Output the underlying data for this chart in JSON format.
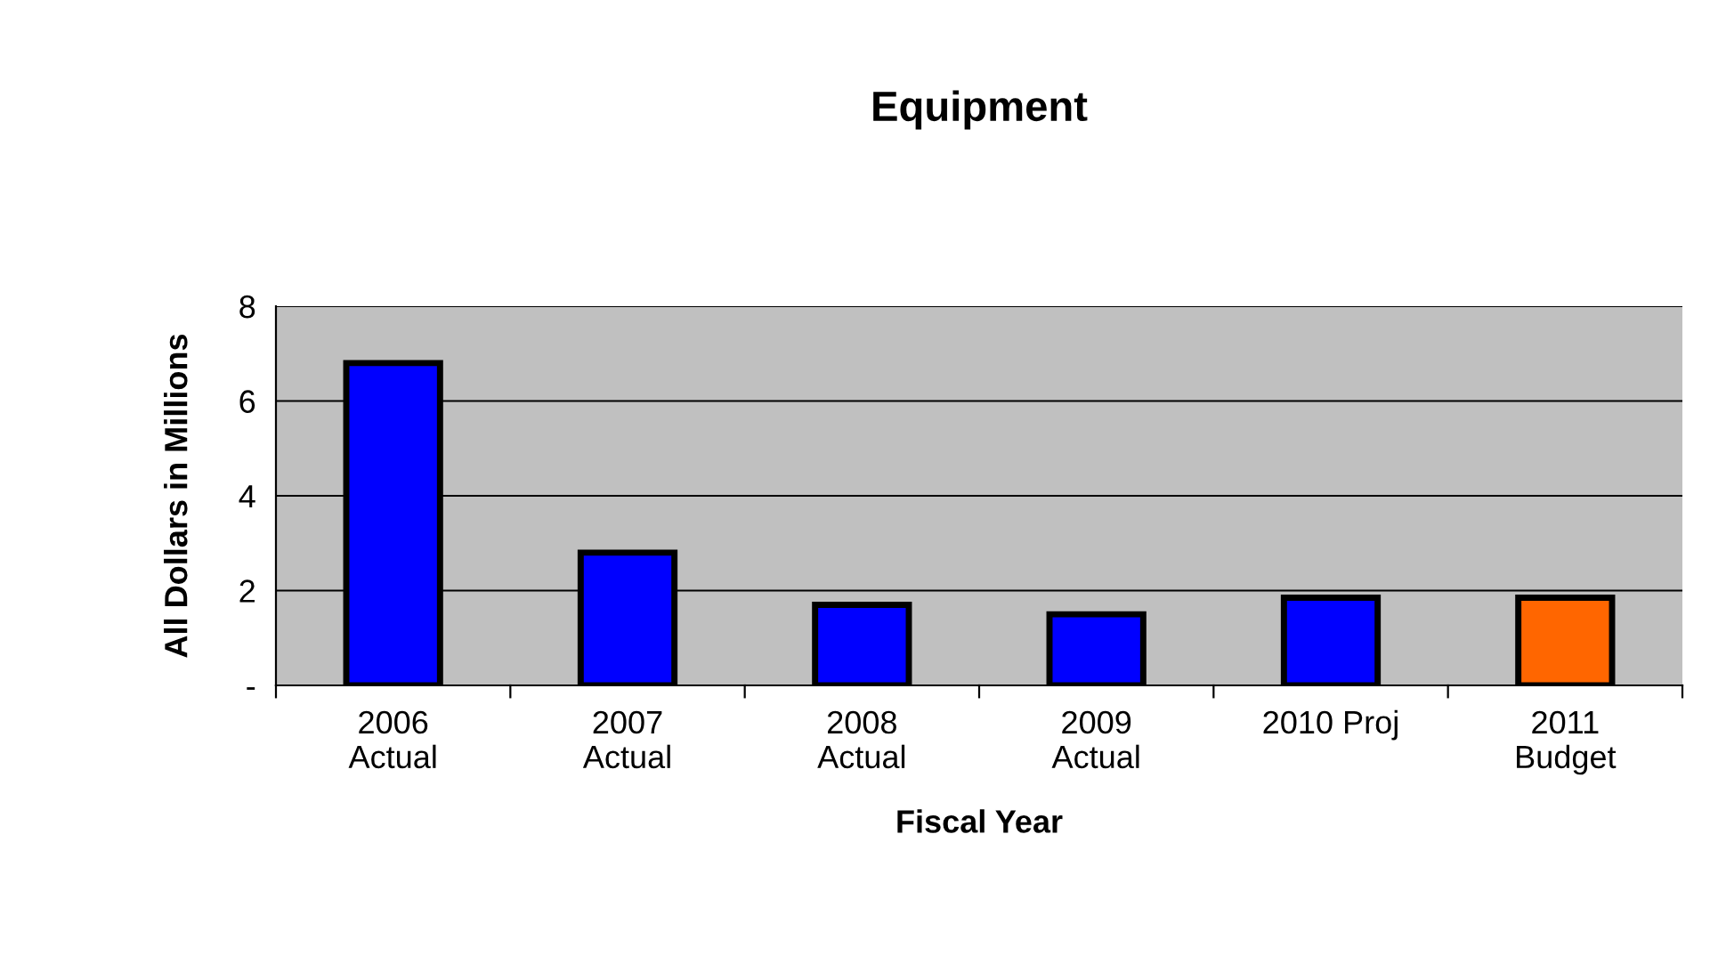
{
  "chart_data": {
    "type": "bar",
    "title": "Equipment",
    "xlabel": "Fiscal Year",
    "ylabel": "All Dollars in Millions",
    "categories": [
      "2006\nActual",
      "2007\nActual",
      "2008\nActual",
      "2009\nActual",
      "2010 Proj",
      "2011\nBudget"
    ],
    "values": [
      6.8,
      2.8,
      1.7,
      1.5,
      1.85,
      1.85
    ],
    "colors": [
      "#0000ff",
      "#0000ff",
      "#0000ff",
      "#0000ff",
      "#0000ff",
      "#ff6600"
    ],
    "ylim": [
      0,
      8
    ],
    "yticks": [
      {
        "value": 0,
        "label": "-"
      },
      2,
      4,
      6,
      8
    ],
    "grid": "y"
  }
}
